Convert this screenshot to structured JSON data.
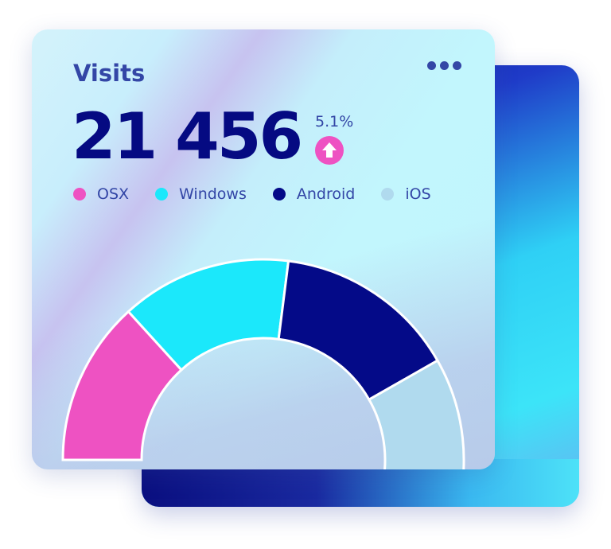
{
  "card": {
    "title": "Visits",
    "value": "21 456",
    "change": "5.1%",
    "change_direction": "up",
    "menu_icon": "more-horizontal-icon"
  },
  "chart_data": {
    "type": "pie",
    "variant": "semi-donut",
    "categories": [
      "OSX",
      "Windows",
      "Android",
      "iOS"
    ],
    "values": [
      26.5,
      27.5,
      29.5,
      16.5
    ],
    "colors": [
      "#ee52c2",
      "#1be8fb",
      "#040a88",
      "#b0daee"
    ],
    "legend": "top"
  }
}
